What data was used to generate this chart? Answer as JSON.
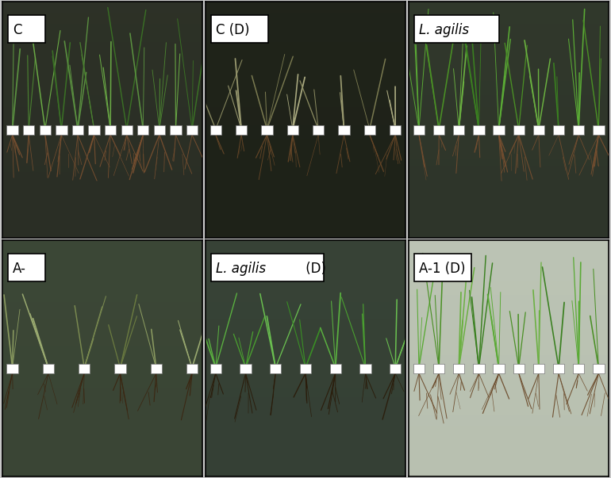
{
  "panels": [
    {
      "label": "C",
      "row": 0,
      "col": 0,
      "italic_part": "",
      "normal_part": "C",
      "bg": "#2a2e25",
      "bg2": "#353a2c",
      "shoot_colors": [
        "#5a9040",
        "#4a8030",
        "#6aaa45",
        "#3a7025"
      ],
      "root_color": "#7a5030",
      "n_plants": 12,
      "drought": false
    },
    {
      "label": "C (D)",
      "row": 0,
      "col": 1,
      "italic_part": "",
      "normal_part": "C (D)",
      "bg": "#1e2218",
      "bg2": "#252820",
      "shoot_colors": [
        "#8a8a60",
        "#9a9a70",
        "#7a7a50",
        "#aaaa80"
      ],
      "root_color": "#6a4828",
      "n_plants": 8,
      "drought": true
    },
    {
      "label": "L. agilis",
      "row": 0,
      "col": 2,
      "italic_part": "L. agilis",
      "normal_part": "",
      "bg": "#2e352a",
      "bg2": "#384030",
      "shoot_colors": [
        "#5aaa35",
        "#4a9025",
        "#6ab040",
        "#3a8020"
      ],
      "root_color": "#7a5030",
      "n_plants": 10,
      "drought": false
    },
    {
      "label": "A-",
      "row": 1,
      "col": 0,
      "italic_part": "",
      "normal_part": "A-",
      "bg": "#3a4535",
      "bg2": "#404e3a",
      "shoot_colors": [
        "#8a9a60",
        "#9aaa70",
        "#7a8a50",
        "#6a7a40"
      ],
      "root_color": "#3a2510",
      "n_plants": 6,
      "drought": true
    },
    {
      "label": "L. agilis (D)",
      "row": 1,
      "col": 1,
      "italic_part": "L. agilis",
      "normal_part": " (D)",
      "bg": "#354035",
      "bg2": "#3e4a3a",
      "shoot_colors": [
        "#5ab040",
        "#4aa030",
        "#6ac050",
        "#3a9025"
      ],
      "root_color": "#2a1a08",
      "n_plants": 7,
      "drought": true
    },
    {
      "label": "A-1 (D)",
      "row": 1,
      "col": 2,
      "italic_part": "",
      "normal_part": "A-1 (D)",
      "bg": "#b8c0b0",
      "bg2": "#c5cdc0",
      "shoot_colors": [
        "#5aaa35",
        "#4a9025",
        "#6ab040",
        "#3a8020"
      ],
      "root_color": "#6a4828",
      "n_plants": 10,
      "drought": false
    }
  ],
  "grid_rows": 2,
  "grid_cols": 3,
  "figsize": [
    7.7,
    6.03
  ],
  "dpi": 100,
  "outer_bg": "#c8c8c8",
  "label_box_color": "#ffffff",
  "label_text_color": "#000000",
  "label_fontsize": 12,
  "border_color": "#000000",
  "border_lw": 1.2
}
